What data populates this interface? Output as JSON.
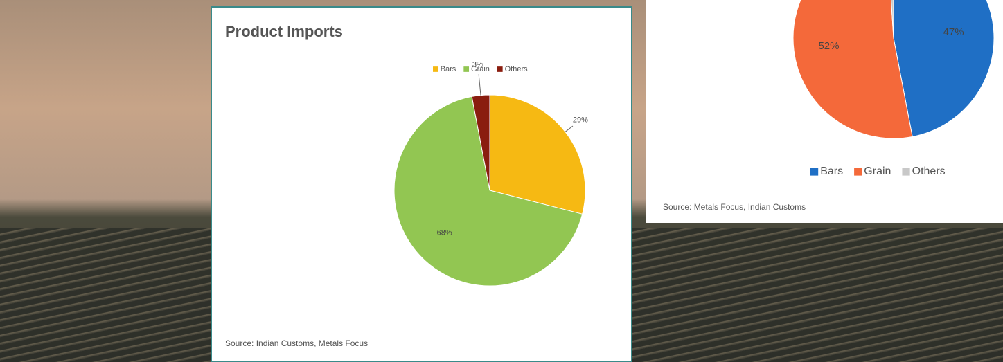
{
  "chart_data": [
    {
      "type": "pie",
      "title": "Product Imports",
      "categories": [
        "Bars",
        "Grain",
        "Others"
      ],
      "values": [
        29,
        68,
        3
      ],
      "value_labels": [
        "29%",
        "68%",
        "3%"
      ],
      "colors": [
        "#f6b913",
        "#92c652",
        "#8a1d0f"
      ],
      "legend": "top",
      "source": "Source: Indian Customs, Metals Focus"
    },
    {
      "type": "pie",
      "categories": [
        "Bars",
        "Grain",
        "Others"
      ],
      "values": [
        47,
        52,
        1
      ],
      "value_labels": [
        "47%",
        "52%",
        null
      ],
      "colors": [
        "#1f6fc5",
        "#f4693a",
        "#c8c8c8"
      ],
      "legend": "bottom",
      "source": "Source: Metals Focus, Indian Customs"
    }
  ]
}
